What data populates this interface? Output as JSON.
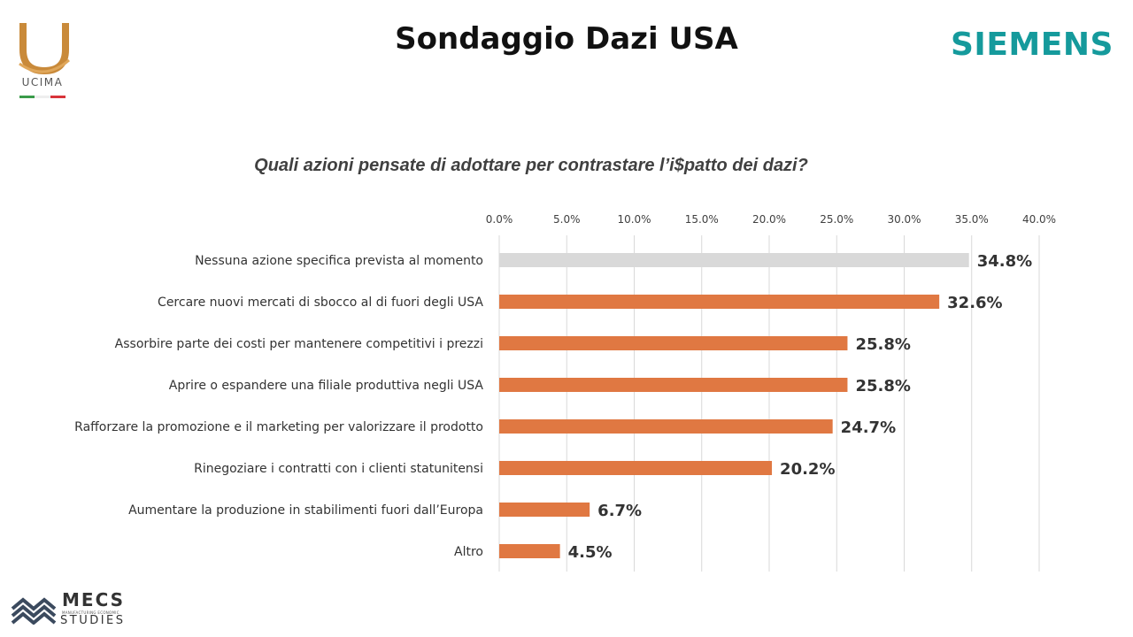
{
  "header": {
    "title": "Sondaggio Dazi USA"
  },
  "logos": {
    "ucima": "UCIMA",
    "siemens": "SIEMENS",
    "mecs": "MECS",
    "mecs_tagline": "MANUFACTURING ECONOMIC",
    "mecs_studies": "STUDIES"
  },
  "colors": {
    "bar_primary": "#e07842",
    "bar_highlight": "#d9d9d9",
    "gridline": "#d9d9d9",
    "siemens_teal": "#159a9c",
    "ucima_gold": "#c98a3a"
  },
  "chart_data": {
    "type": "bar",
    "orientation": "horizontal",
    "title": "Quali azioni pensate di adottare per contrastare l’i$patto dei dazi?",
    "xlabel": "",
    "ylabel": "",
    "xlim": [
      0,
      40
    ],
    "x_ticks": [
      "0.0%",
      "5.0%",
      "10.0%",
      "15.0%",
      "20.0%",
      "25.0%",
      "30.0%",
      "35.0%",
      "40.0%"
    ],
    "x_tick_values": [
      0,
      5,
      10,
      15,
      20,
      25,
      30,
      35,
      40
    ],
    "x_axis_position": "top",
    "grid": true,
    "legend": false,
    "categories": [
      "Nessuna azione specifica prevista al momento",
      "Cercare nuovi mercati di sbocco al di fuori degli USA",
      "Assorbire parte dei costi per mantenere competitivi i prezzi",
      "Aprire o espandere una filiale produttiva negli USA",
      "Rafforzare la promozione e il marketing per valorizzare il prodotto",
      "Rinegoziare i contratti con i clienti statunitensi",
      "Aumentare la produzione in stabilimenti fuori dall’Europa",
      "Altro"
    ],
    "values": [
      34.8,
      32.6,
      25.8,
      25.8,
      24.7,
      20.2,
      6.7,
      4.5
    ],
    "value_labels": [
      "34.8%",
      "32.6%",
      "25.8%",
      "25.8%",
      "24.7%",
      "20.2%",
      "6.7%",
      "4.5%"
    ],
    "highlighted_index": 0
  }
}
